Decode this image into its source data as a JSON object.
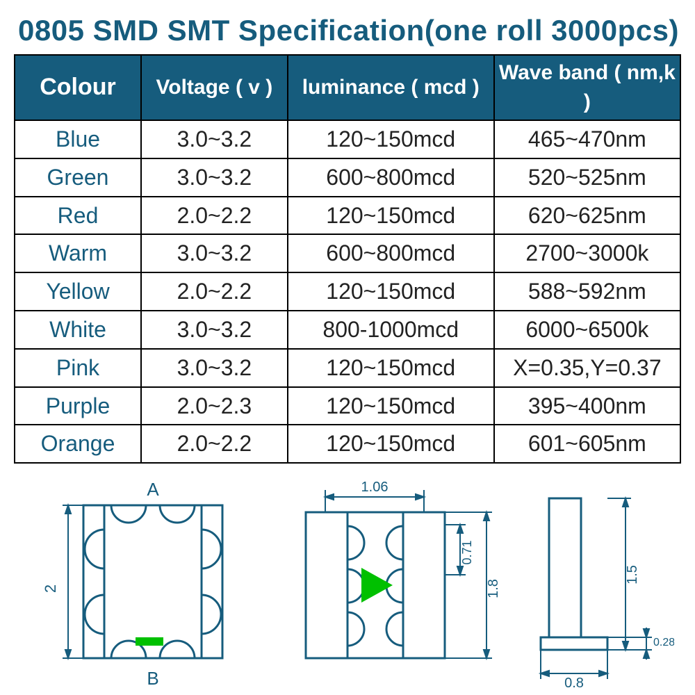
{
  "title": "0805 SMD SMT Specification(one roll 3000pcs)",
  "colors": {
    "brand": "#165c7d",
    "text": "#222222",
    "border": "#000000",
    "background": "#ffffff",
    "accent_green": "#00c000",
    "diagram_stroke": "#165c7d"
  },
  "fonts": {
    "title_size_pt": 42,
    "header_size_pt": 30,
    "cell_size_pt": 32,
    "diagram_label_pt": 20
  },
  "table": {
    "columns": [
      {
        "key": "colour",
        "label": "Colour"
      },
      {
        "key": "voltage",
        "label": "Voltage ( v )"
      },
      {
        "key": "luminance",
        "label": "luminance ( mcd )"
      },
      {
        "key": "waveband",
        "label": "Wave band ( nm,k )"
      }
    ],
    "column_widths_pct": [
      19,
      22,
      31,
      28
    ],
    "rows": [
      {
        "colour": "Blue",
        "voltage": "3.0~3.2",
        "luminance": "120~150mcd",
        "waveband": "465~470nm"
      },
      {
        "colour": "Green",
        "voltage": "3.0~3.2",
        "luminance": "600~800mcd",
        "waveband": "520~525nm"
      },
      {
        "colour": "Red",
        "voltage": "2.0~2.2",
        "luminance": "120~150mcd",
        "waveband": "620~625nm"
      },
      {
        "colour": "Warm",
        "voltage": "3.0~3.2",
        "luminance": "600~800mcd",
        "waveband": "2700~3000k"
      },
      {
        "colour": "Yellow",
        "voltage": "2.0~2.2",
        "luminance": "120~150mcd",
        "waveband": "588~592nm"
      },
      {
        "colour": "White",
        "voltage": "3.0~3.2",
        "luminance": "800-1000mcd",
        "waveband": "6000~6500k"
      },
      {
        "colour": "Pink",
        "voltage": "3.0~3.2",
        "luminance": "120~150mcd",
        "waveband": "X=0.35,Y=0.37"
      },
      {
        "colour": "Purple",
        "voltage": "2.0~2.3",
        "luminance": "120~150mcd",
        "waveband": "395~400nm"
      },
      {
        "colour": "Orange",
        "voltage": "2.0~2.2",
        "luminance": "120~150mcd",
        "waveband": "601~605nm"
      }
    ]
  },
  "diagrams": {
    "d1": {
      "label_top": "A",
      "label_bottom": "B",
      "dim_left": "2"
    },
    "d2": {
      "dim_top": "1.06",
      "dim_right_inner": "0.71",
      "dim_right_outer": "1.8"
    },
    "d3": {
      "dim_right": "1.5",
      "dim_bottom_outer": "0.8",
      "dim_bottom_right": "0.28"
    }
  }
}
